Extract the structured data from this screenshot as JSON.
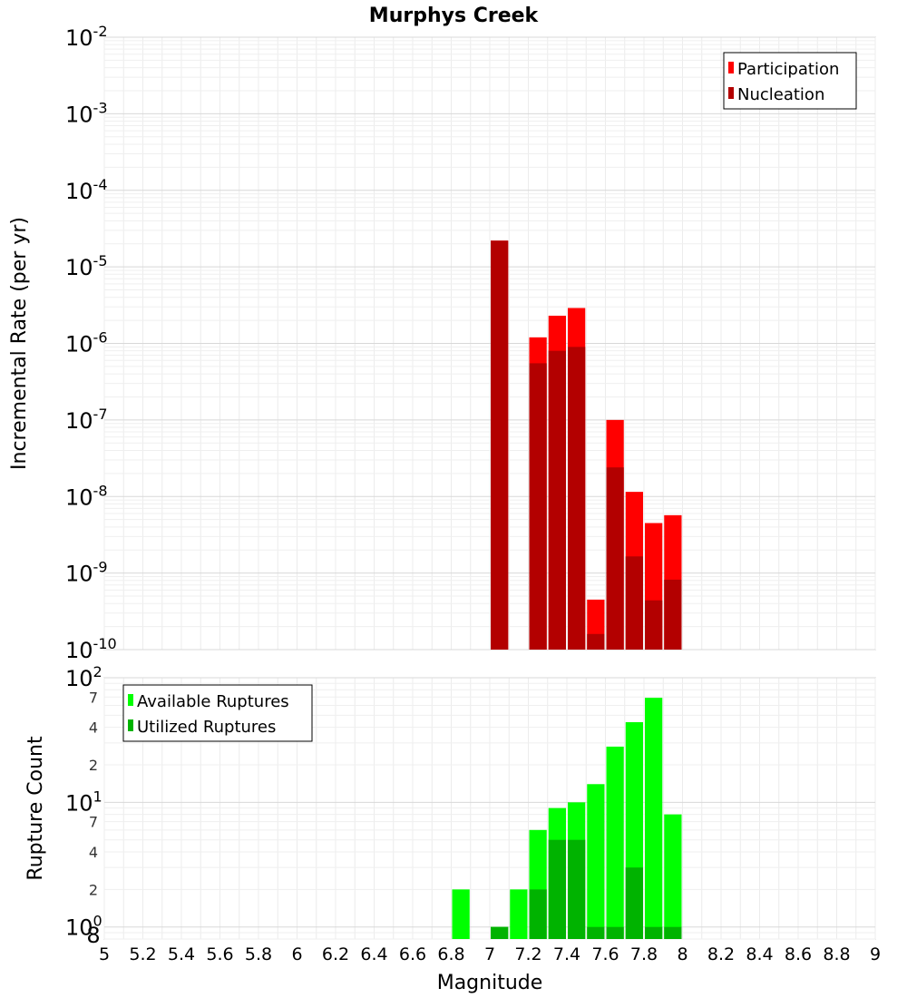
{
  "title": "Murphys Creek",
  "xlabel": "Magnitude",
  "chart_data": [
    {
      "type": "bar",
      "ylabel": "Incremental Rate (per yr)",
      "yscale": "log",
      "ylim": [
        1e-10,
        0.01
      ],
      "xlim": [
        5,
        9
      ],
      "x_tick_labels": [
        "5",
        "5.2",
        "5.4",
        "5.6",
        "5.8",
        "6",
        "6.2",
        "6.4",
        "6.6",
        "6.8",
        "7",
        "7.2",
        "7.4",
        "7.6",
        "7.8",
        "8",
        "8.2",
        "8.4",
        "8.6",
        "8.8",
        "9"
      ],
      "y_tick_labels": [
        {
          "base": "10",
          "exp": "-2"
        },
        {
          "base": "10",
          "exp": "-3"
        },
        {
          "base": "10",
          "exp": "-4"
        },
        {
          "base": "10",
          "exp": "-5"
        },
        {
          "base": "10",
          "exp": "-6"
        },
        {
          "base": "10",
          "exp": "-7"
        },
        {
          "base": "10",
          "exp": "-8"
        },
        {
          "base": "10",
          "exp": "-9"
        },
        {
          "base": "10",
          "exp": "-10"
        }
      ],
      "legend_position": "top-right",
      "series": [
        {
          "name": "Participation",
          "color": "#ff0000",
          "points": [
            {
              "x": 7.05,
              "y": 2.2e-05
            },
            {
              "x": 7.25,
              "y": 1.2e-06
            },
            {
              "x": 7.35,
              "y": 2.3e-06
            },
            {
              "x": 7.45,
              "y": 2.9e-06
            },
            {
              "x": 7.55,
              "y": 4.5e-10
            },
            {
              "x": 7.65,
              "y": 1e-07
            },
            {
              "x": 7.75,
              "y": 1.15e-08
            },
            {
              "x": 7.85,
              "y": 4.5e-09
            },
            {
              "x": 7.95,
              "y": 5.7e-09
            }
          ]
        },
        {
          "name": "Nucleation",
          "color": "#b30000",
          "points": [
            {
              "x": 7.05,
              "y": 2.2e-05
            },
            {
              "x": 7.25,
              "y": 5.5e-07
            },
            {
              "x": 7.35,
              "y": 8e-07
            },
            {
              "x": 7.45,
              "y": 9e-07
            },
            {
              "x": 7.55,
              "y": 1.6e-10
            },
            {
              "x": 7.65,
              "y": 2.4e-08
            },
            {
              "x": 7.75,
              "y": 1.65e-09
            },
            {
              "x": 7.85,
              "y": 4.4e-10
            },
            {
              "x": 7.95,
              "y": 8.2e-10
            }
          ]
        }
      ]
    },
    {
      "type": "bar",
      "ylabel": "Rupture Count",
      "yscale": "log",
      "ylim": [
        0.8,
        100
      ],
      "xlim": [
        5,
        9
      ],
      "y_tick_labels": [
        {
          "base": "10",
          "exp": "2",
          "value": 100
        },
        {
          "base": "10",
          "exp": "1",
          "value": 10
        },
        {
          "base": "10",
          "exp": "0",
          "value": 1
        }
      ],
      "y_minor_tick_labels": [
        {
          "label": "7",
          "value": 70
        },
        {
          "label": "4",
          "value": 40
        },
        {
          "label": "2",
          "value": 20
        },
        {
          "label": "7",
          "value": 7
        },
        {
          "label": "4",
          "value": 4
        },
        {
          "label": "2",
          "value": 2
        },
        {
          "label": "8",
          "value": 0.8
        }
      ],
      "legend_position": "top-left",
      "series": [
        {
          "name": "Available Ruptures",
          "color": "#00ff00",
          "points": [
            {
              "x": 6.85,
              "y": 2
            },
            {
              "x": 7.05,
              "y": 1
            },
            {
              "x": 7.15,
              "y": 2
            },
            {
              "x": 7.25,
              "y": 6
            },
            {
              "x": 7.35,
              "y": 9
            },
            {
              "x": 7.45,
              "y": 10
            },
            {
              "x": 7.55,
              "y": 14
            },
            {
              "x": 7.65,
              "y": 28
            },
            {
              "x": 7.75,
              "y": 44
            },
            {
              "x": 7.85,
              "y": 69
            },
            {
              "x": 7.95,
              "y": 8
            }
          ]
        },
        {
          "name": "Utilized Ruptures",
          "color": "#00b300",
          "points": [
            {
              "x": 7.05,
              "y": 1
            },
            {
              "x": 7.25,
              "y": 2
            },
            {
              "x": 7.35,
              "y": 5
            },
            {
              "x": 7.45,
              "y": 5
            },
            {
              "x": 7.55,
              "y": 1
            },
            {
              "x": 7.65,
              "y": 1
            },
            {
              "x": 7.75,
              "y": 3
            },
            {
              "x": 7.85,
              "y": 1
            },
            {
              "x": 7.95,
              "y": 1
            }
          ]
        }
      ]
    }
  ]
}
